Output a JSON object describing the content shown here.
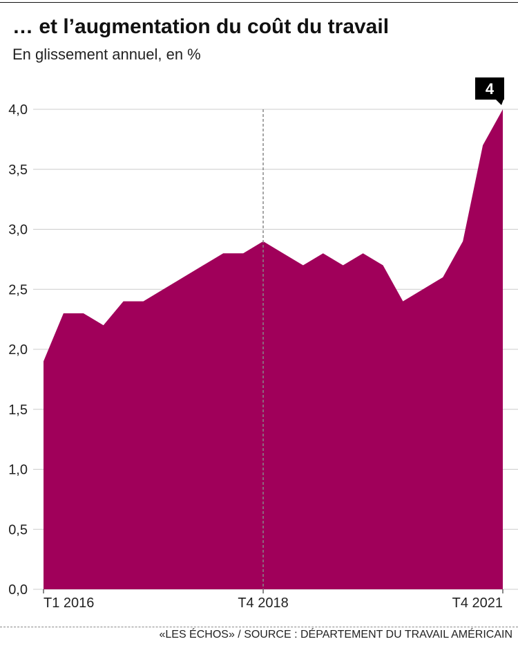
{
  "header": {
    "title": "… et l’augmentation du coût du travail",
    "subtitle": "En glissement annuel, en %"
  },
  "footer": {
    "source": "«LES ÉCHOS» / SOURCE : DÉPARTEMENT DU TRAVAIL AMÉRICAIN"
  },
  "colors": {
    "area": "#a0005a",
    "grid": "#cccccc",
    "callout_bg": "#000000",
    "callout_text": "#ffffff"
  },
  "chart_data": {
    "type": "area",
    "title": "… et l’augmentation du coût du travail",
    "subtitle": "En glissement annuel, en %",
    "ylim": [
      0,
      4.0
    ],
    "yticks": [
      0.0,
      0.5,
      1.0,
      1.5,
      2.0,
      2.5,
      3.0,
      3.5,
      4.0
    ],
    "ytick_labels": [
      "0,0",
      "0,5",
      "1,0",
      "1,5",
      "2,0",
      "2,5",
      "3,0",
      "3,5",
      "4,0"
    ],
    "x_labels": [
      {
        "index": 0,
        "label": "T1 2016"
      },
      {
        "index": 11,
        "label": "T4 2018"
      },
      {
        "index": 23,
        "label": "T4 2021"
      }
    ],
    "reference_line_index": 11,
    "values": [
      1.9,
      2.3,
      2.3,
      2.2,
      2.4,
      2.4,
      2.5,
      2.6,
      2.7,
      2.8,
      2.8,
      2.9,
      2.8,
      2.7,
      2.8,
      2.7,
      2.8,
      2.7,
      2.4,
      2.5,
      2.6,
      2.9,
      3.7,
      4.0
    ],
    "callout": {
      "index": 23,
      "label": "4"
    },
    "grid": true
  }
}
